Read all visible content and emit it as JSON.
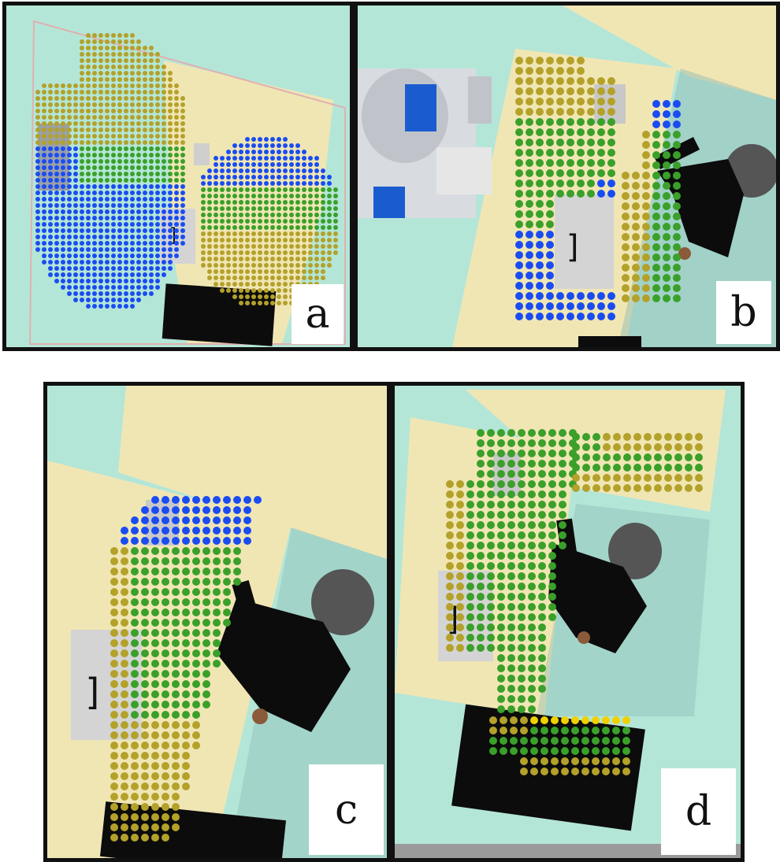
{
  "colors": {
    "floor": "#b4e6d8",
    "table": "#f0e6b4",
    "blue": "#1a4cf2",
    "green": "#3aa02a",
    "olive": "#b3a12a",
    "box": "#d4d4d4",
    "black": "#0c0c0c"
  },
  "panels": [
    {
      "id": "a",
      "label": "a"
    },
    {
      "id": "b",
      "label": "b"
    },
    {
      "id": "c",
      "label": "c"
    },
    {
      "id": "d",
      "label": "d"
    }
  ]
}
